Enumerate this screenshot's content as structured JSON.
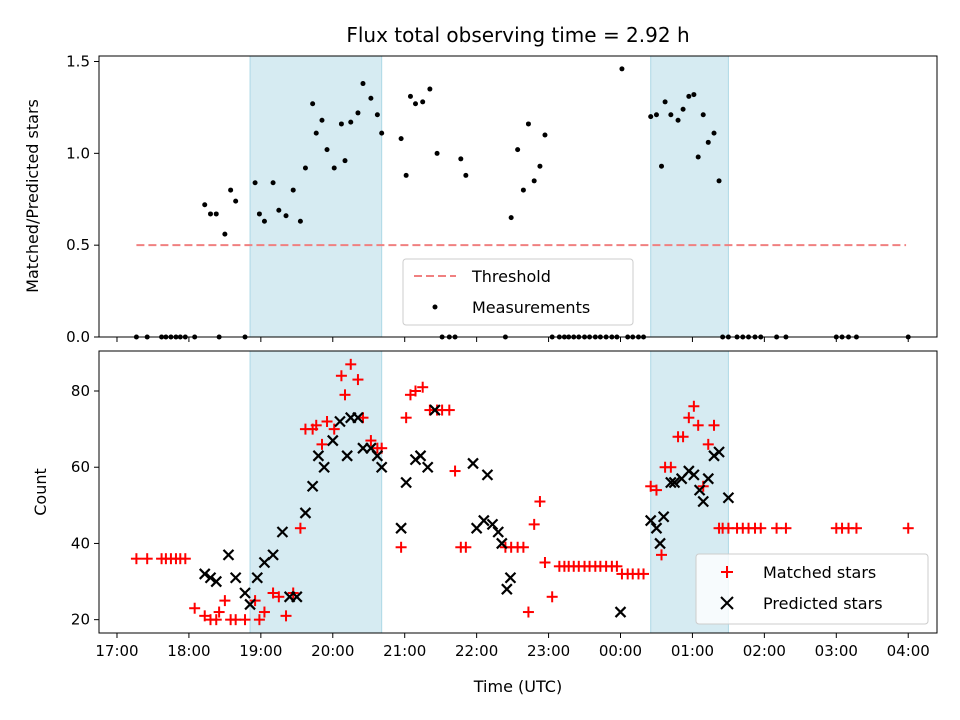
{
  "chart_data": [
    {
      "type": "scatter",
      "title": "Flux total observing time = 2.92 h",
      "ylabel": "Matched/Predicted stars",
      "xlabel": "",
      "xlim": [
        -0.25,
        11.4
      ],
      "ylim": [
        0,
        1.53
      ],
      "yticks": [
        0.0,
        0.5,
        1.0,
        1.5
      ],
      "ytick_labels": [
        "0.0",
        "0.5",
        "1.0",
        "1.5"
      ],
      "grid": false,
      "legend": "bottom-center",
      "shaded_spans": [
        [
          1.85,
          3.68
        ],
        [
          7.42,
          8.5
        ]
      ],
      "threshold": {
        "name": "Threshold",
        "value": 0.5,
        "x": [
          0.27,
          10.97
        ],
        "color": "#f08080"
      },
      "series": [
        {
          "name": "Measurements",
          "color": "#000000",
          "x": [
            0.27,
            0.42,
            0.62,
            0.68,
            0.75,
            0.82,
            0.88,
            0.95,
            1.08,
            1.22,
            1.3,
            1.38,
            1.42,
            1.5,
            1.58,
            1.65,
            1.78,
            1.92,
            1.98,
            2.05,
            2.17,
            2.25,
            2.35,
            2.45,
            2.55,
            2.62,
            2.72,
            2.77,
            2.85,
            2.92,
            3.02,
            3.12,
            3.17,
            3.25,
            3.35,
            3.42,
            3.53,
            3.62,
            3.68,
            3.95,
            4.02,
            4.08,
            4.15,
            4.25,
            4.35,
            4.45,
            4.52,
            4.62,
            4.7,
            4.78,
            4.85,
            5.4,
            5.48,
            5.57,
            5.65,
            5.72,
            5.8,
            5.88,
            5.95,
            6.05,
            6.15,
            6.22,
            6.28,
            6.35,
            6.42,
            6.5,
            6.57,
            6.65,
            6.72,
            6.8,
            6.88,
            6.95,
            7.02,
            7.1,
            7.17,
            7.25,
            7.32,
            7.42,
            7.5,
            7.57,
            7.62,
            7.7,
            7.8,
            7.87,
            7.95,
            8.02,
            8.08,
            8.15,
            8.22,
            8.3,
            8.37,
            8.42,
            8.5,
            8.62,
            8.7,
            8.78,
            8.87,
            8.95,
            9.17,
            9.3,
            10.0,
            10.08,
            10.17,
            10.28,
            11.0
          ],
          "y": [
            0,
            0,
            0,
            0,
            0,
            0,
            0,
            0,
            0,
            0.72,
            0.67,
            0.67,
            0,
            0.56,
            0.8,
            0.74,
            0,
            0.84,
            0.67,
            0.63,
            0.84,
            0.69,
            0.66,
            0.8,
            0.63,
            0.92,
            1.27,
            1.11,
            1.18,
            1.02,
            0.92,
            1.16,
            0.96,
            1.17,
            1.22,
            1.38,
            1.3,
            1.21,
            1.11,
            1.08,
            0.88,
            1.31,
            1.27,
            1.28,
            1.35,
            1.0,
            0,
            0,
            0,
            0.97,
            0.88,
            0,
            0.65,
            1.02,
            0.8,
            1.16,
            0.85,
            0.93,
            1.1,
            0,
            0,
            0,
            0,
            0,
            0,
            0,
            0,
            0,
            0,
            0,
            0,
            0,
            1.46,
            0,
            0,
            0,
            0,
            1.2,
            1.21,
            0.93,
            1.28,
            1.21,
            1.18,
            1.24,
            1.31,
            1.32,
            0.98,
            1.21,
            1.06,
            1.11,
            0.85,
            0,
            0,
            0,
            0,
            0,
            0,
            0,
            0,
            0,
            0,
            0,
            0,
            0,
            0
          ]
        }
      ]
    },
    {
      "type": "scatter",
      "title": "",
      "xlabel": "Time (UTC)",
      "ylabel": "Count",
      "xlim": [
        -0.25,
        11.4
      ],
      "ylim": [
        16.5,
        90.5
      ],
      "yticks": [
        20,
        40,
        60,
        80
      ],
      "ytick_labels": [
        "20",
        "40",
        "60",
        "80"
      ],
      "xticks": [
        0,
        1,
        2,
        3,
        4,
        5,
        6,
        7,
        8,
        9,
        10,
        11
      ],
      "xtick_labels": [
        "17:00",
        "18:00",
        "19:00",
        "20:00",
        "21:00",
        "22:00",
        "23:00",
        "00:00",
        "01:00",
        "02:00",
        "03:00",
        "04:00"
      ],
      "grid": false,
      "legend": "bottom-right",
      "shaded_spans": [
        [
          1.85,
          3.68
        ],
        [
          7.42,
          8.5
        ]
      ],
      "series": [
        {
          "name": "Matched stars",
          "marker": "plus",
          "color": "#ff0000",
          "x": [
            0.27,
            0.42,
            0.62,
            0.68,
            0.75,
            0.82,
            0.88,
            0.95,
            1.08,
            1.22,
            1.3,
            1.38,
            1.42,
            1.5,
            1.58,
            1.65,
            1.78,
            1.92,
            1.98,
            2.05,
            2.17,
            2.25,
            2.35,
            2.45,
            2.55,
            2.62,
            2.72,
            2.77,
            2.85,
            2.92,
            3.02,
            3.12,
            3.17,
            3.25,
            3.35,
            3.42,
            3.53,
            3.62,
            3.68,
            3.95,
            4.02,
            4.08,
            4.15,
            4.25,
            4.35,
            4.45,
            4.52,
            4.62,
            4.7,
            4.78,
            4.85,
            5.4,
            5.48,
            5.57,
            5.65,
            5.72,
            5.8,
            5.88,
            5.95,
            6.05,
            6.15,
            6.22,
            6.28,
            6.35,
            6.42,
            6.5,
            6.57,
            6.65,
            6.72,
            6.8,
            6.88,
            6.95,
            7.02,
            7.1,
            7.17,
            7.25,
            7.32,
            7.42,
            7.5,
            7.57,
            7.62,
            7.7,
            7.8,
            7.87,
            7.95,
            8.02,
            8.08,
            8.15,
            8.22,
            8.3,
            8.37,
            8.42,
            8.5,
            8.62,
            8.7,
            8.78,
            8.87,
            8.95,
            9.17,
            9.3,
            10.0,
            10.08,
            10.17,
            10.28,
            11.0
          ],
          "y": [
            36,
            36,
            36,
            36,
            36,
            36,
            36,
            36,
            23,
            21,
            20,
            20,
            22,
            25,
            20,
            20,
            20,
            25,
            20,
            22,
            27,
            26,
            21,
            27,
            44,
            70,
            70,
            71,
            66,
            72,
            70,
            84,
            79,
            87,
            83,
            73,
            67,
            65,
            65,
            39,
            73,
            79,
            80,
            81,
            75,
            75,
            75,
            75,
            59,
            39,
            39,
            39,
            39,
            39,
            39,
            22,
            45,
            51,
            35,
            26,
            34,
            34,
            34,
            34,
            34,
            34,
            34,
            34,
            34,
            34,
            34,
            34,
            32,
            32,
            32,
            32,
            32,
            55,
            54,
            37,
            60,
            60,
            68,
            68,
            73,
            76,
            71,
            55,
            66,
            71,
            44,
            44,
            44,
            44,
            44,
            44,
            44,
            44,
            44,
            44,
            44,
            44,
            44,
            44,
            44
          ]
        },
        {
          "name": "Predicted stars",
          "marker": "x",
          "color": "#000000",
          "x": [
            1.22,
            1.3,
            1.38,
            1.55,
            1.65,
            1.78,
            1.85,
            1.95,
            2.05,
            2.17,
            2.3,
            2.4,
            2.5,
            2.62,
            2.72,
            2.8,
            2.88,
            3.0,
            3.1,
            3.2,
            3.25,
            3.35,
            3.42,
            3.53,
            3.62,
            3.68,
            3.95,
            4.02,
            4.15,
            4.22,
            4.32,
            4.42,
            4.95,
            5.0,
            5.1,
            5.15,
            5.22,
            5.3,
            5.35,
            5.42,
            5.47,
            7.0,
            7.42,
            7.5,
            7.55,
            7.6,
            7.7,
            7.75,
            7.85,
            7.95,
            8.02,
            8.1,
            8.15,
            8.22,
            8.3,
            8.37,
            8.5
          ],
          "y": [
            32,
            31,
            30,
            37,
            31,
            27,
            24,
            31,
            35,
            37,
            43,
            26,
            26,
            48,
            55,
            63,
            60,
            67,
            72,
            63,
            73,
            73,
            65,
            65,
            63,
            60,
            44,
            56,
            62,
            63,
            60,
            75,
            61,
            44,
            46,
            58,
            45,
            43,
            40,
            28,
            31,
            22,
            46,
            44,
            40,
            47,
            56,
            56,
            57,
            59,
            58,
            54,
            51,
            57,
            63,
            64,
            52
          ]
        }
      ]
    }
  ]
}
